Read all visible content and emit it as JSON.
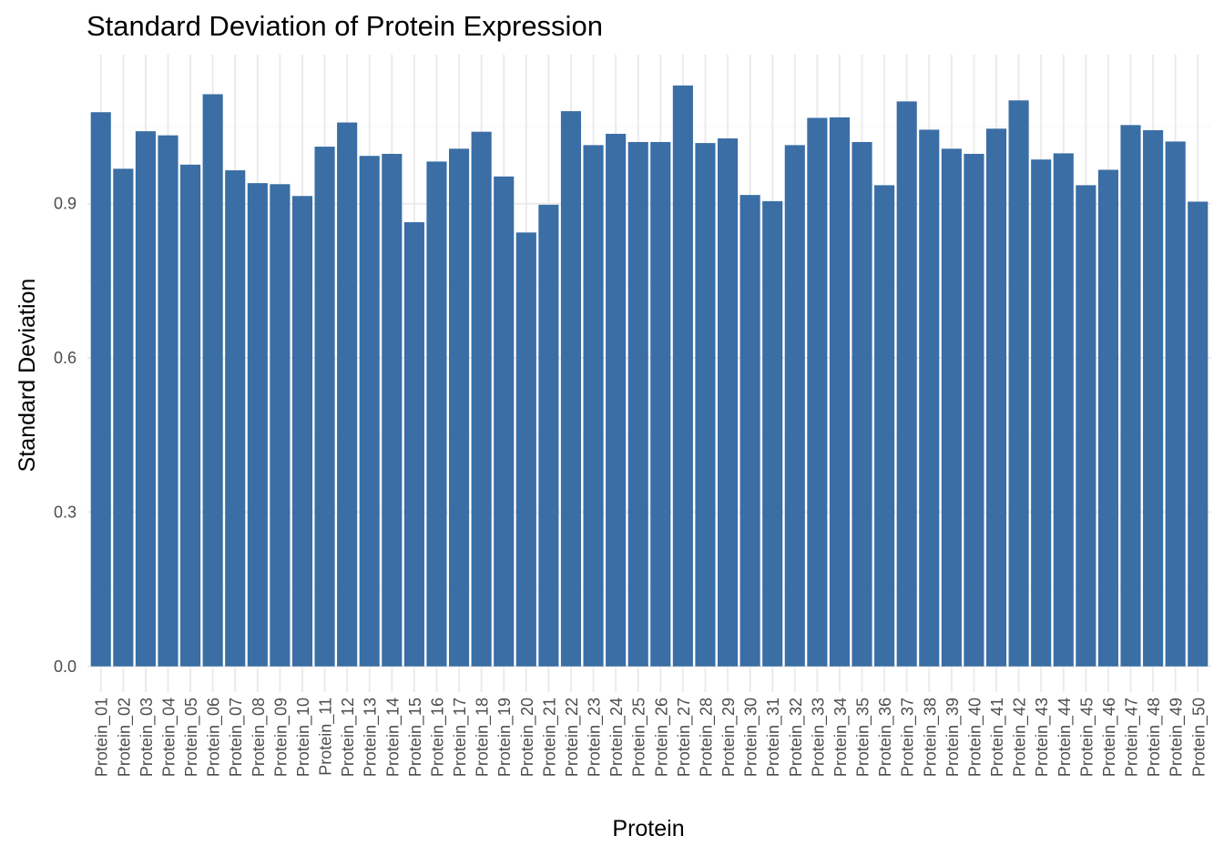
{
  "chart_data": {
    "type": "bar",
    "title": "Standard Deviation of Protein Expression",
    "xlabel": "Protein",
    "ylabel": "Standard Deviation",
    "ylim": [
      -0.05,
      1.19
    ],
    "yticks": [
      0.0,
      0.3,
      0.6,
      0.9
    ],
    "ytick_labels": [
      "0.0",
      "0.3",
      "0.6",
      "0.9"
    ],
    "grid": true,
    "bar_color": "#3a6ea5",
    "categories": [
      "Protein_01",
      "Protein_02",
      "Protein_03",
      "Protein_04",
      "Protein_05",
      "Protein_06",
      "Protein_07",
      "Protein_08",
      "Protein_09",
      "Protein_10",
      "Protein_11",
      "Protein_12",
      "Protein_13",
      "Protein_14",
      "Protein_15",
      "Protein_16",
      "Protein_17",
      "Protein_18",
      "Protein_19",
      "Protein_20",
      "Protein_21",
      "Protein_22",
      "Protein_23",
      "Protein_24",
      "Protein_25",
      "Protein_26",
      "Protein_27",
      "Protein_28",
      "Protein_29",
      "Protein_30",
      "Protein_31",
      "Protein_32",
      "Protein_33",
      "Protein_34",
      "Protein_35",
      "Protein_36",
      "Protein_37",
      "Protein_38",
      "Protein_39",
      "Protein_40",
      "Protein_41",
      "Protein_42",
      "Protein_43",
      "Protein_44",
      "Protein_45",
      "Protein_46",
      "Protein_47",
      "Protein_48",
      "Protein_49",
      "Protein_50"
    ],
    "values": [
      1.078,
      0.968,
      1.041,
      1.033,
      0.976,
      1.113,
      0.965,
      0.94,
      0.938,
      0.915,
      1.011,
      1.058,
      0.993,
      0.997,
      0.864,
      0.982,
      1.007,
      1.04,
      0.953,
      0.844,
      0.898,
      1.08,
      1.014,
      1.036,
      1.02,
      1.02,
      1.13,
      1.018,
      1.027,
      0.917,
      0.905,
      1.014,
      1.067,
      1.068,
      1.02,
      0.936,
      1.099,
      1.044,
      1.007,
      0.997,
      1.046,
      1.101,
      0.986,
      0.998,
      0.936,
      0.966,
      1.053,
      1.043,
      1.021,
      0.904
    ]
  }
}
